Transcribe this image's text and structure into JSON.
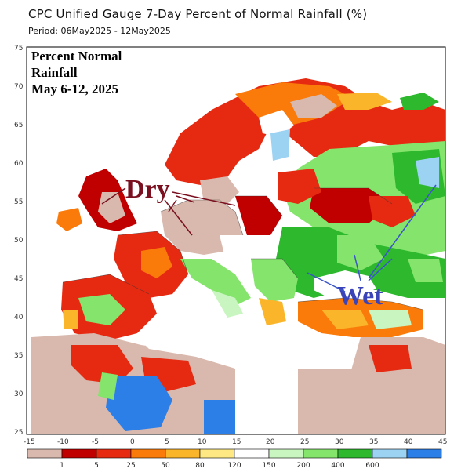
{
  "header": {
    "title": "CPC Unified Gauge 7-Day Percent of Normal Rainfall (%)",
    "period": "Period: 06May2025 - 12May2025"
  },
  "overlay": {
    "line1": "Percent Normal",
    "line2": "Rainfall",
    "line3": "May 6-12, 2025",
    "dry_label": "Dry",
    "wet_label": "Wet"
  },
  "axes": {
    "lat_labels": [
      "75",
      "70",
      "65",
      "60",
      "55",
      "50",
      "45",
      "40",
      "35",
      "30",
      "25"
    ],
    "lon_labels": [
      "-15",
      "-10",
      "-5",
      "0",
      "5",
      "10",
      "15",
      "20",
      "25",
      "30",
      "35",
      "40",
      "45"
    ]
  },
  "legend": {
    "labels": [
      "1",
      "5",
      "25",
      "50",
      "80",
      "120",
      "150",
      "200",
      "400",
      "600"
    ],
    "colors": [
      "#d9b9ad",
      "#c00000",
      "#e62a12",
      "#fa7a0a",
      "#fbb52a",
      "#fde884",
      "#ffffff",
      "#c9f5c0",
      "#84e46c",
      "#2eb82e",
      "#9cd2f2",
      "#2d7fe8"
    ]
  },
  "colors": {
    "dry_text": "#7a1020",
    "wet_text": "#3a43b8",
    "callout_line": "#3a55c8"
  }
}
